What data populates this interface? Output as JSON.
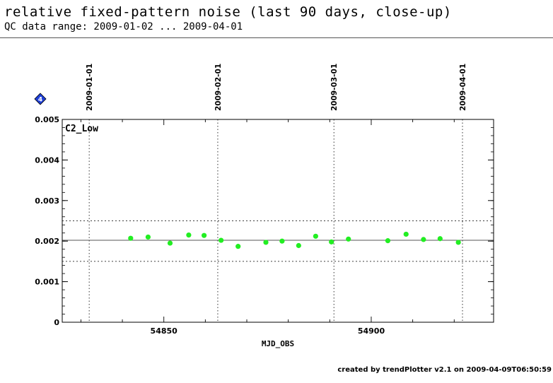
{
  "header": {
    "title": "relative fixed-pattern noise (last 90 days, close-up)",
    "subtitle": "QC data range: 2009-01-02 ... 2009-04-01"
  },
  "badge": {
    "label": "4",
    "color": "#1f3fd6"
  },
  "footer": {
    "text": "created by trendPlotter v2.1 on 2009-04-09T06:50:59"
  },
  "chart_data": {
    "type": "scatter",
    "panel_label": "C2_Low",
    "xlabel": "MJD_OBS",
    "ylabel": "",
    "xlim": [
      54825.5,
      54929.5
    ],
    "ylim": [
      0,
      0.005
    ],
    "x_ticks": [
      54850,
      54900
    ],
    "y_ticks": [
      0,
      0.001,
      0.002,
      0.003,
      0.004,
      0.005
    ],
    "y_tick_labels": [
      "0",
      "0.001",
      "0.002",
      "0.003",
      "0.004",
      "0.005"
    ],
    "date_markers": [
      {
        "x": 54832,
        "label": "2009-01-01"
      },
      {
        "x": 54863,
        "label": "2009-02-01"
      },
      {
        "x": 54891,
        "label": "2009-03-01"
      },
      {
        "x": 54922,
        "label": "2009-04-01"
      }
    ],
    "reference_line": 0.00202,
    "threshold_lines": [
      0.0015,
      0.0025
    ],
    "point_color": "#22ee22",
    "series": [
      {
        "x": [
          54842.0,
          54846.2,
          54851.5,
          54856.0,
          54859.7,
          54863.8,
          54867.9,
          54874.6,
          54878.5,
          54882.5,
          54886.6,
          54890.4,
          54894.5,
          54904.0,
          54908.4,
          54912.6,
          54916.6,
          54921.0
        ],
        "y": [
          0.00207,
          0.0021,
          0.00195,
          0.00215,
          0.00214,
          0.00202,
          0.00187,
          0.00197,
          0.002,
          0.00189,
          0.00212,
          0.00198,
          0.00205,
          0.00201,
          0.00217,
          0.00204,
          0.00206,
          0.00197
        ]
      }
    ],
    "grid": false
  }
}
